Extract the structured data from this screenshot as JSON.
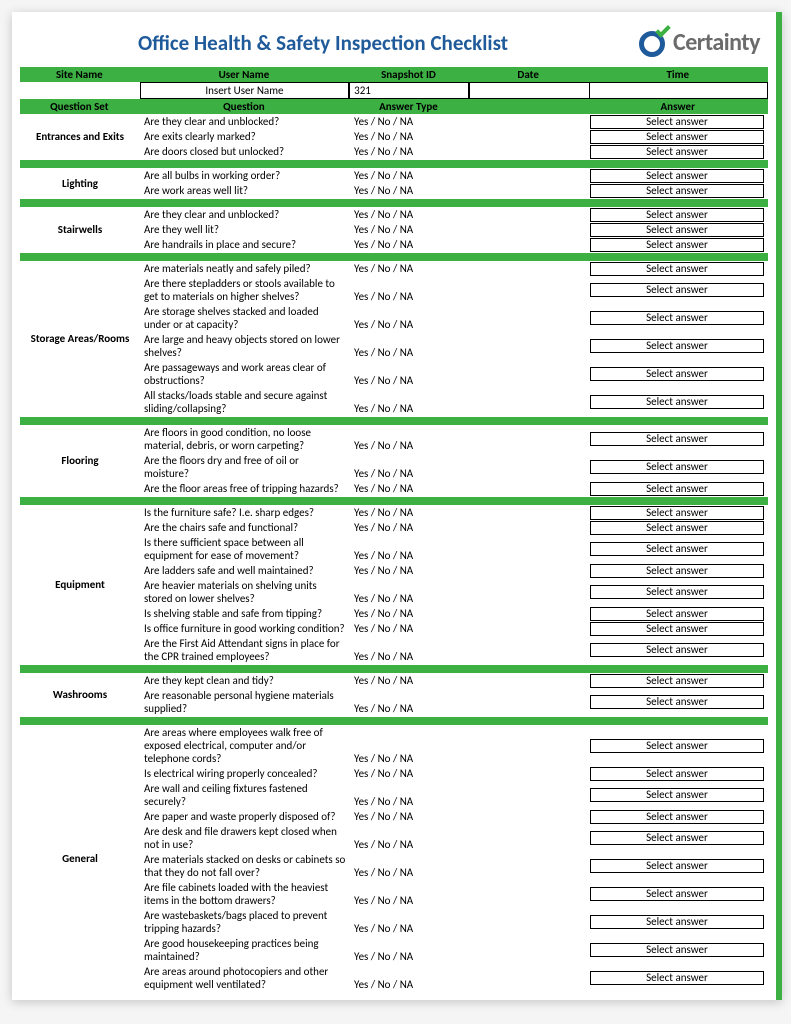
{
  "title": "Office Health & Safety Inspection Checklist",
  "brand": "Certainty",
  "colors": {
    "green": "#3cb043",
    "blue": "#1f5a9a"
  },
  "answer_label": "Select answer",
  "header_row1": {
    "site": "Site Name",
    "user": "User Name",
    "snap": "Snapshot ID",
    "date": "Date",
    "time": "Time"
  },
  "input_row": {
    "site": "",
    "user": "Insert User Name",
    "snap": "321",
    "date": "",
    "time": ""
  },
  "header_row2": {
    "qset": "Question Set",
    "q": "Question",
    "atype": "Answer Type",
    "ans": "Answer"
  },
  "sections": [
    {
      "name": "Entrances and Exits",
      "questions": [
        {
          "q": "Are they clear and unblocked?",
          "t": "Yes / No / NA"
        },
        {
          "q": "Are exits clearly marked?",
          "t": "Yes / No / NA"
        },
        {
          "q": "Are doors closed but unlocked?",
          "t": "Yes / No / NA"
        }
      ]
    },
    {
      "name": "Lighting",
      "questions": [
        {
          "q": "Are all bulbs in working order?",
          "t": "Yes / No / NA"
        },
        {
          "q": "Are work areas well lit?",
          "t": "Yes / No / NA"
        }
      ]
    },
    {
      "name": "Stairwells",
      "questions": [
        {
          "q": "Are they clear and unblocked?",
          "t": "Yes / No / NA"
        },
        {
          "q": "Are they well lit?",
          "t": "Yes / No / NA"
        },
        {
          "q": "Are handrails in place and secure?",
          "t": "Yes / No / NA"
        }
      ]
    },
    {
      "name": "Storage Areas/Rooms",
      "questions": [
        {
          "q": "Are materials neatly and safely piled?",
          "t": "Yes / No / NA"
        },
        {
          "q": "Are there stepladders or stools available to get to materials on higher shelves?",
          "t": "Yes / No / NA"
        },
        {
          "q": "Are storage shelves stacked and loaded under or at capacity?",
          "t": "Yes / No / NA"
        },
        {
          "q": "Are large and heavy objects stored on lower shelves?",
          "t": "Yes / No / NA"
        },
        {
          "q": "Are passageways and work areas clear of obstructions?",
          "t": "Yes / No / NA"
        },
        {
          "q": "All stacks/loads stable and secure against sliding/collapsing?",
          "t": "Yes / No / NA"
        }
      ]
    },
    {
      "name": "Flooring",
      "questions": [
        {
          "q": "Are floors in good condition, no loose material, debris, or worn carpeting?",
          "t": "Yes / No / NA"
        },
        {
          "q": "Are the floors dry and free of oil or moisture?",
          "t": "Yes / No / NA"
        },
        {
          "q": "Are the floor areas free of tripping hazards?",
          "t": "Yes / No / NA"
        }
      ]
    },
    {
      "name": "Equipment",
      "questions": [
        {
          "q": "Is the furniture safe? I.e. sharp edges?",
          "t": "Yes / No / NA"
        },
        {
          "q": "Are the chairs safe and functional?",
          "t": "Yes / No / NA"
        },
        {
          "q": "Is there sufficient space between all equipment for ease of movement?",
          "t": "Yes / No / NA"
        },
        {
          "q": "Are ladders safe and well maintained?",
          "t": "Yes / No / NA"
        },
        {
          "q": "Are heavier materials on shelving units stored on lower shelves?",
          "t": "Yes / No / NA"
        },
        {
          "q": "Is shelving stable and safe from tipping?",
          "t": "Yes / No / NA"
        },
        {
          "q": "Is office furniture in good working condition?",
          "t": "Yes / No / NA"
        },
        {
          "q": "Are the First Aid Attendant signs in place for the CPR trained employees?",
          "t": "Yes / No / NA"
        }
      ]
    },
    {
      "name": "Washrooms",
      "questions": [
        {
          "q": "Are they kept clean and tidy?",
          "t": "Yes / No / NA"
        },
        {
          "q": "Are reasonable personal hygiene materials supplied?",
          "t": "Yes / No / NA"
        }
      ]
    },
    {
      "name": "General",
      "questions": [
        {
          "q": "Are areas where employees walk free of exposed electrical, computer and/or telephone cords?",
          "t": "Yes / No / NA"
        },
        {
          "q": "Is electrical wiring properly concealed?",
          "t": "Yes / No / NA"
        },
        {
          "q": "Are wall and ceiling fixtures fastened securely?",
          "t": "Yes / No / NA"
        },
        {
          "q": "Are paper and waste properly disposed of?",
          "t": "Yes / No / NA"
        },
        {
          "q": "Are desk and file drawers kept closed when not in use?",
          "t": "Yes / No / NA"
        },
        {
          "q": "Are materials stacked on desks or cabinets so that they do not fall over?",
          "t": "Yes / No / NA"
        },
        {
          "q": "Are file cabinets loaded with the heaviest items in the bottom drawers?",
          "t": "Yes / No / NA"
        },
        {
          "q": "Are wastebaskets/bags placed to prevent tripping hazards?",
          "t": "Yes / No / NA"
        },
        {
          "q": "Are good housekeeping practices being maintained?",
          "t": "Yes / No / NA"
        },
        {
          "q": "Are areas around photocopiers and other equipment well ventilated?",
          "t": "Yes / No / NA"
        }
      ]
    }
  ]
}
